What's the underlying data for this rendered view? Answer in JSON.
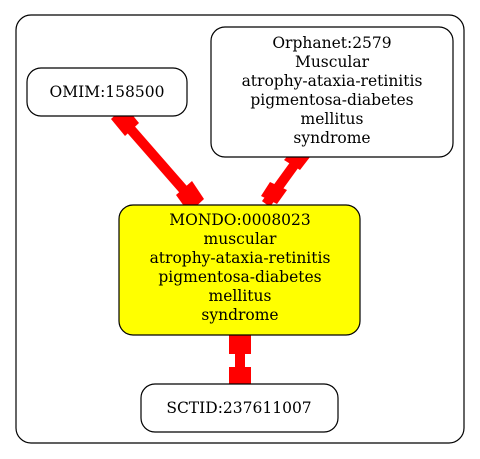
{
  "nodes": {
    "omim": {
      "lines": [
        "OMIM:158500"
      ],
      "fill": "#ffffff"
    },
    "orphanet": {
      "lines": [
        "Orphanet:2579",
        "Muscular",
        "atrophy-ataxia-retinitis",
        "pigmentosa-diabetes",
        "mellitus",
        "syndrome"
      ],
      "fill": "#ffffff"
    },
    "mondo": {
      "lines": [
        "MONDO:0008023",
        "muscular",
        "atrophy-ataxia-retinitis",
        "pigmentosa-diabetes",
        "mellitus",
        "syndrome"
      ],
      "fill": "#ffff00"
    },
    "sctid": {
      "lines": [
        "SCTID:237611007"
      ],
      "fill": "#ffffff"
    }
  },
  "edges": [
    {
      "from": "omim",
      "to": "mondo",
      "color": "#ff0000"
    },
    {
      "from": "orphanet",
      "to": "mondo",
      "color": "#ff0000"
    },
    {
      "from": "mondo",
      "to": "sctid",
      "color": "#ff0000"
    }
  ],
  "colors": {
    "stroke": "#000000",
    "edge": "#ff0000"
  }
}
